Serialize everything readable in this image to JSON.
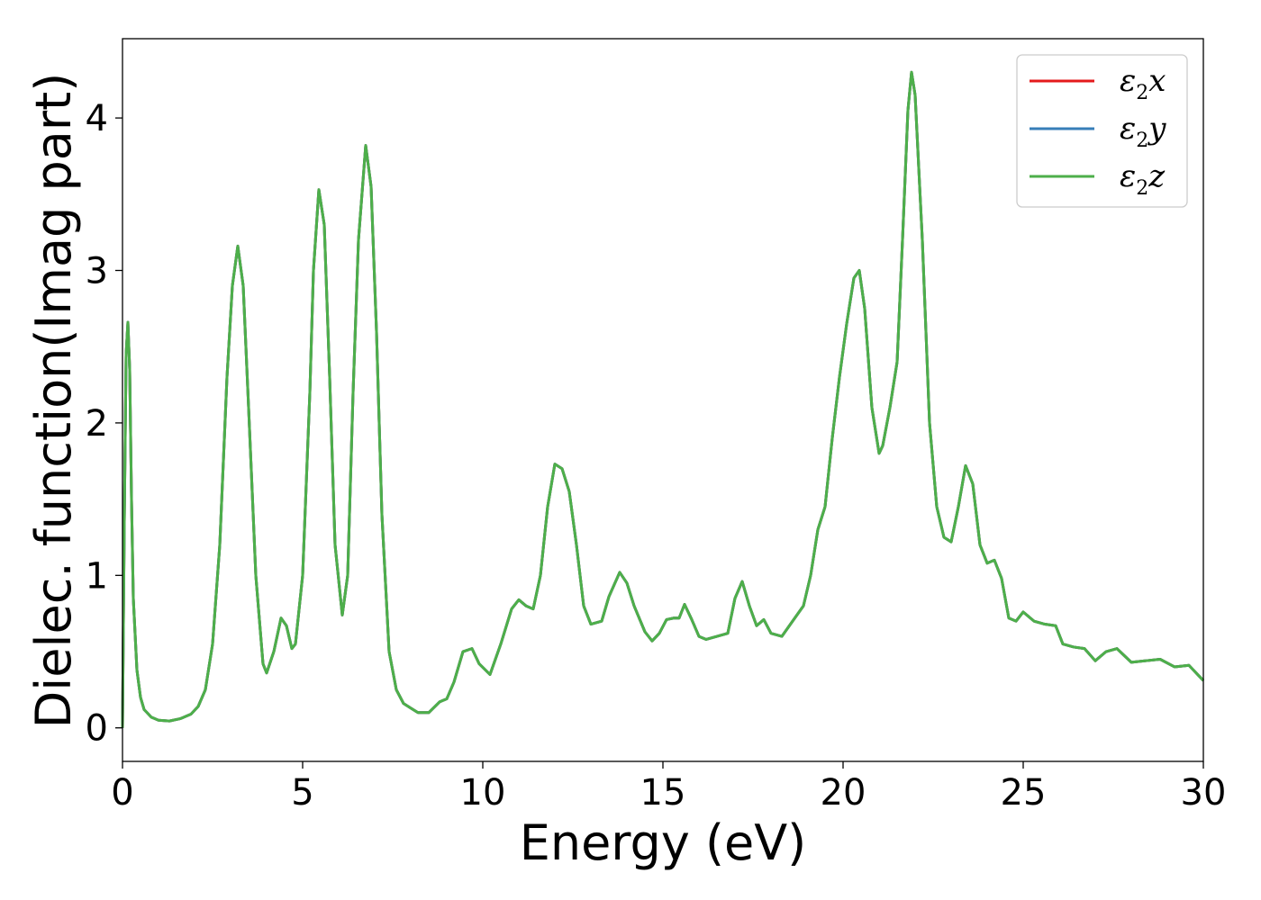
{
  "chart_data": {
    "type": "line",
    "xlabel": "Energy (eV)",
    "ylabel": "Dielec. function(Imag part)",
    "xlim": [
      0,
      30
    ],
    "ylim": [
      -0.22,
      4.52
    ],
    "xticks": [
      0,
      5,
      10,
      15,
      20,
      25,
      30
    ],
    "yticks": [
      0,
      1,
      2,
      3,
      4
    ],
    "xtick_labels": [
      "0",
      "5",
      "10",
      "15",
      "20",
      "25",
      "30"
    ],
    "ytick_labels": [
      "0",
      "1",
      "2",
      "3",
      "4"
    ],
    "grid": false,
    "legend_position": "top-right",
    "colors": {
      "x": "#e41a1c",
      "y": "#377eb8",
      "z": "#4daf4a"
    },
    "x": [
      0,
      0.05,
      0.1,
      0.15,
      0.2,
      0.25,
      0.3,
      0.4,
      0.5,
      0.6,
      0.8,
      1.0,
      1.3,
      1.6,
      1.9,
      2.1,
      2.3,
      2.5,
      2.7,
      2.9,
      3.05,
      3.2,
      3.35,
      3.5,
      3.7,
      3.9,
      4.0,
      4.2,
      4.4,
      4.55,
      4.7,
      4.8,
      5.0,
      5.2,
      5.3,
      5.45,
      5.6,
      5.75,
      5.9,
      6.1,
      6.25,
      6.4,
      6.55,
      6.75,
      6.9,
      7.05,
      7.2,
      7.4,
      7.6,
      7.8,
      8.0,
      8.2,
      8.5,
      8.8,
      9.0,
      9.2,
      9.45,
      9.7,
      9.9,
      10.2,
      10.5,
      10.8,
      11.0,
      11.2,
      11.4,
      11.6,
      11.8,
      12.0,
      12.2,
      12.4,
      12.6,
      12.8,
      13.0,
      13.3,
      13.5,
      13.8,
      14.0,
      14.2,
      14.5,
      14.7,
      14.9,
      15.1,
      15.3,
      15.45,
      15.6,
      15.8,
      16.0,
      16.2,
      16.5,
      16.8,
      17.0,
      17.2,
      17.4,
      17.6,
      17.8,
      18.0,
      18.3,
      18.6,
      18.9,
      19.1,
      19.3,
      19.5,
      19.7,
      19.9,
      20.1,
      20.3,
      20.45,
      20.6,
      20.8,
      21.0,
      21.1,
      21.3,
      21.5,
      21.65,
      21.8,
      21.9,
      22.0,
      22.2,
      22.4,
      22.6,
      22.8,
      23.0,
      23.2,
      23.4,
      23.6,
      23.8,
      24.0,
      24.2,
      24.4,
      24.6,
      24.8,
      25.0,
      25.3,
      25.6,
      25.9,
      26.1,
      26.4,
      26.7,
      27.0,
      27.3,
      27.6,
      28.0,
      28.4,
      28.8,
      29.2,
      29.6,
      30.0
    ],
    "series": [
      {
        "name": "ε2x",
        "values": [
          0.0,
          1.35,
          2.45,
          2.66,
          2.35,
          1.5,
          0.85,
          0.38,
          0.2,
          0.12,
          0.07,
          0.05,
          0.045,
          0.06,
          0.09,
          0.14,
          0.25,
          0.55,
          1.2,
          2.3,
          2.9,
          3.16,
          2.9,
          2.1,
          1.0,
          0.42,
          0.36,
          0.5,
          0.72,
          0.67,
          0.52,
          0.55,
          1.0,
          2.2,
          3.0,
          3.53,
          3.3,
          2.3,
          1.2,
          0.74,
          1.0,
          2.2,
          3.2,
          3.82,
          3.55,
          2.6,
          1.4,
          0.5,
          0.25,
          0.16,
          0.13,
          0.1,
          0.1,
          0.17,
          0.19,
          0.3,
          0.5,
          0.52,
          0.42,
          0.35,
          0.55,
          0.78,
          0.84,
          0.8,
          0.78,
          1.0,
          1.45,
          1.73,
          1.7,
          1.55,
          1.2,
          0.8,
          0.68,
          0.7,
          0.86,
          1.02,
          0.95,
          0.8,
          0.63,
          0.57,
          0.62,
          0.71,
          0.72,
          0.72,
          0.81,
          0.71,
          0.6,
          0.58,
          0.6,
          0.62,
          0.85,
          0.96,
          0.8,
          0.67,
          0.71,
          0.62,
          0.6,
          0.7,
          0.8,
          1.0,
          1.3,
          1.45,
          1.9,
          2.3,
          2.65,
          2.95,
          3.0,
          2.75,
          2.1,
          1.8,
          1.85,
          2.1,
          2.4,
          3.2,
          4.05,
          4.3,
          4.15,
          3.2,
          2.0,
          1.45,
          1.25,
          1.22,
          1.45,
          1.72,
          1.6,
          1.2,
          1.08,
          1.1,
          0.98,
          0.72,
          0.7,
          0.76,
          0.7,
          0.68,
          0.67,
          0.55,
          0.53,
          0.52,
          0.44,
          0.5,
          0.52,
          0.43,
          0.44,
          0.45,
          0.4,
          0.41,
          0.31
        ]
      },
      {
        "name": "ε2y",
        "values": [
          0.0,
          1.35,
          2.45,
          2.66,
          2.35,
          1.5,
          0.85,
          0.38,
          0.2,
          0.12,
          0.07,
          0.05,
          0.045,
          0.06,
          0.09,
          0.14,
          0.25,
          0.55,
          1.2,
          2.3,
          2.9,
          3.16,
          2.9,
          2.1,
          1.0,
          0.42,
          0.36,
          0.5,
          0.72,
          0.67,
          0.52,
          0.55,
          1.0,
          2.2,
          3.0,
          3.53,
          3.3,
          2.3,
          1.2,
          0.74,
          1.0,
          2.2,
          3.2,
          3.82,
          3.55,
          2.6,
          1.4,
          0.5,
          0.25,
          0.16,
          0.13,
          0.1,
          0.1,
          0.17,
          0.19,
          0.3,
          0.5,
          0.52,
          0.42,
          0.35,
          0.55,
          0.78,
          0.84,
          0.8,
          0.78,
          1.0,
          1.45,
          1.73,
          1.7,
          1.55,
          1.2,
          0.8,
          0.68,
          0.7,
          0.86,
          1.02,
          0.95,
          0.8,
          0.63,
          0.57,
          0.62,
          0.71,
          0.72,
          0.72,
          0.81,
          0.71,
          0.6,
          0.58,
          0.6,
          0.62,
          0.85,
          0.96,
          0.8,
          0.67,
          0.71,
          0.62,
          0.6,
          0.7,
          0.8,
          1.0,
          1.3,
          1.45,
          1.9,
          2.3,
          2.65,
          2.95,
          3.0,
          2.75,
          2.1,
          1.8,
          1.85,
          2.1,
          2.4,
          3.2,
          4.05,
          4.3,
          4.15,
          3.2,
          2.0,
          1.45,
          1.25,
          1.22,
          1.45,
          1.72,
          1.6,
          1.2,
          1.08,
          1.1,
          0.98,
          0.72,
          0.7,
          0.76,
          0.7,
          0.68,
          0.67,
          0.55,
          0.53,
          0.52,
          0.44,
          0.5,
          0.52,
          0.43,
          0.44,
          0.45,
          0.4,
          0.41,
          0.31
        ]
      },
      {
        "name": "ε2z",
        "values": [
          0.0,
          1.35,
          2.45,
          2.66,
          2.35,
          1.5,
          0.85,
          0.38,
          0.2,
          0.12,
          0.07,
          0.05,
          0.045,
          0.06,
          0.09,
          0.14,
          0.25,
          0.55,
          1.2,
          2.3,
          2.9,
          3.16,
          2.9,
          2.1,
          1.0,
          0.42,
          0.36,
          0.5,
          0.72,
          0.67,
          0.52,
          0.55,
          1.0,
          2.2,
          3.0,
          3.53,
          3.3,
          2.3,
          1.2,
          0.74,
          1.0,
          2.2,
          3.2,
          3.82,
          3.55,
          2.6,
          1.4,
          0.5,
          0.25,
          0.16,
          0.13,
          0.1,
          0.1,
          0.17,
          0.19,
          0.3,
          0.5,
          0.52,
          0.42,
          0.35,
          0.55,
          0.78,
          0.84,
          0.8,
          0.78,
          1.0,
          1.45,
          1.73,
          1.7,
          1.55,
          1.2,
          0.8,
          0.68,
          0.7,
          0.86,
          1.02,
          0.95,
          0.8,
          0.63,
          0.57,
          0.62,
          0.71,
          0.72,
          0.72,
          0.81,
          0.71,
          0.6,
          0.58,
          0.6,
          0.62,
          0.85,
          0.96,
          0.8,
          0.67,
          0.71,
          0.62,
          0.6,
          0.7,
          0.8,
          1.0,
          1.3,
          1.45,
          1.9,
          2.3,
          2.65,
          2.95,
          3.0,
          2.75,
          2.1,
          1.8,
          1.85,
          2.1,
          2.4,
          3.2,
          4.05,
          4.3,
          4.15,
          3.2,
          2.0,
          1.45,
          1.25,
          1.22,
          1.45,
          1.72,
          1.6,
          1.2,
          1.08,
          1.1,
          0.98,
          0.72,
          0.7,
          0.76,
          0.7,
          0.68,
          0.67,
          0.55,
          0.53,
          0.52,
          0.44,
          0.5,
          0.52,
          0.43,
          0.44,
          0.45,
          0.4,
          0.41,
          0.31
        ]
      }
    ],
    "legend": [
      {
        "base": "ε",
        "sub": "2",
        "tail": "x"
      },
      {
        "base": "ε",
        "sub": "2",
        "tail": "y"
      },
      {
        "base": "ε",
        "sub": "2",
        "tail": "z"
      }
    ]
  }
}
